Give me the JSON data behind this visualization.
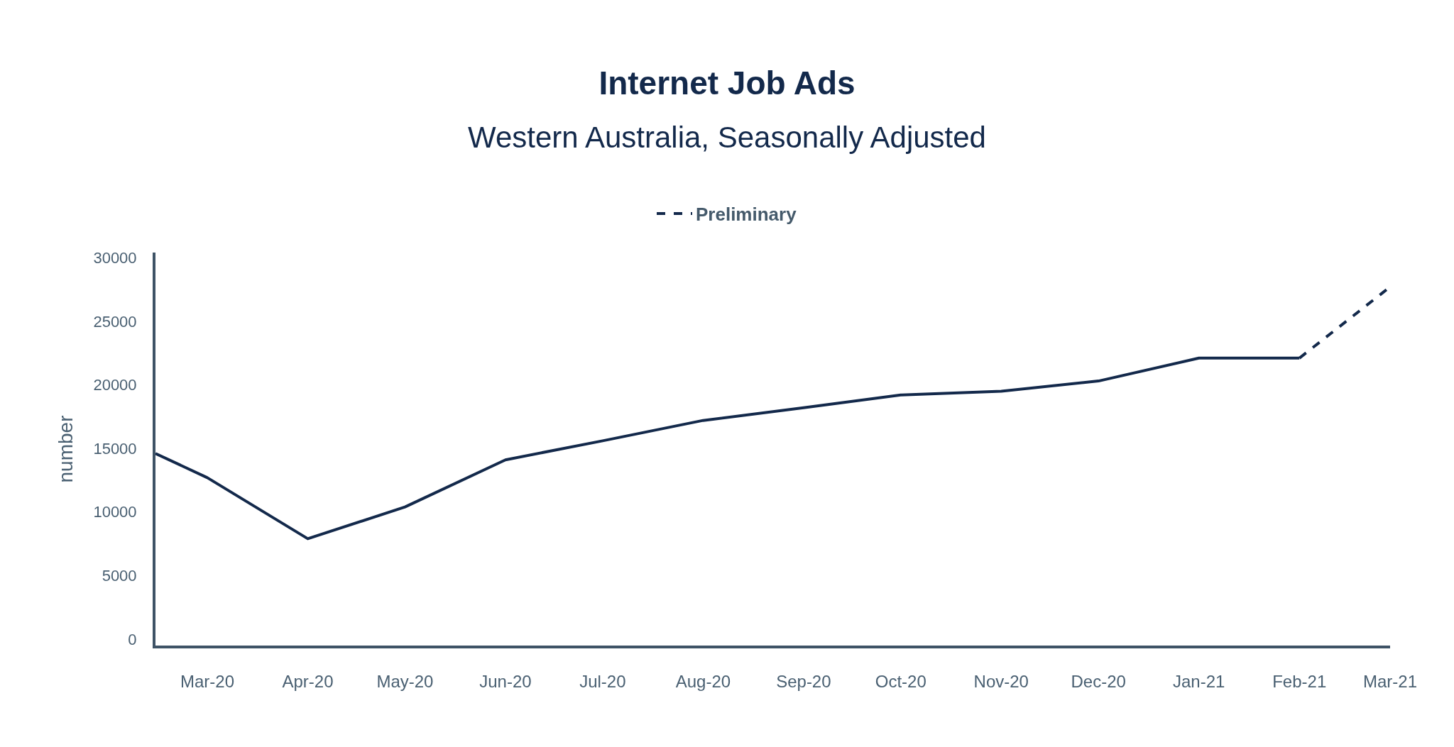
{
  "chart_data": {
    "type": "line",
    "title": "Internet Job Ads",
    "subtitle": "Western Australia, Seasonally Adjusted",
    "ylabel": "number",
    "x": [
      "2020-02-14",
      "2020-03-01",
      "2020-04-01",
      "2020-05-01",
      "2020-06-01",
      "2020-07-01",
      "2020-08-01",
      "2020-09-01",
      "2020-10-01",
      "2020-11-01",
      "2020-12-01",
      "2021-01-01",
      "2021-02-01"
    ],
    "series": [
      {
        "color": "#13294b",
        "values": [
          14600,
          12700,
          7900,
          10400,
          14100,
          15600,
          17200,
          18200,
          19200,
          19500,
          20300,
          22100,
          22100
        ],
        "line_style": "solid"
      },
      {
        "name": "Preliminary",
        "color": "#13294b",
        "x": [
          "2021-02-01",
          "2021-03-01"
        ],
        "values": [
          22100,
          27700
        ],
        "line_style": "dashed"
      }
    ],
    "xlim": [
      "2020-02-14",
      "2021-03-01"
    ],
    "xticks": [
      {
        "value": "2020-03-01",
        "label": "Mar-20"
      },
      {
        "value": "2020-04-01",
        "label": "Apr-20"
      },
      {
        "value": "2020-05-01",
        "label": "May-20"
      },
      {
        "value": "2020-06-01",
        "label": "Jun-20"
      },
      {
        "value": "2020-07-01",
        "label": "Jul-20"
      },
      {
        "value": "2020-08-01",
        "label": "Aug-20"
      },
      {
        "value": "2020-09-01",
        "label": "Sep-20"
      },
      {
        "value": "2020-10-01",
        "label": "Oct-20"
      },
      {
        "value": "2020-11-01",
        "label": "Nov-20"
      },
      {
        "value": "2020-12-01",
        "label": "Dec-20"
      },
      {
        "value": "2021-01-01",
        "label": "Jan-21"
      },
      {
        "value": "2021-02-01",
        "label": "Feb-21"
      },
      {
        "value": "2021-03-01",
        "label": "Mar-21"
      }
    ],
    "ylim": [
      -500,
      30400
    ],
    "yticks": [
      0,
      5000,
      10000,
      15000,
      20000,
      25000,
      30000
    ],
    "grid": false,
    "legend": "top",
    "marker": "none"
  }
}
